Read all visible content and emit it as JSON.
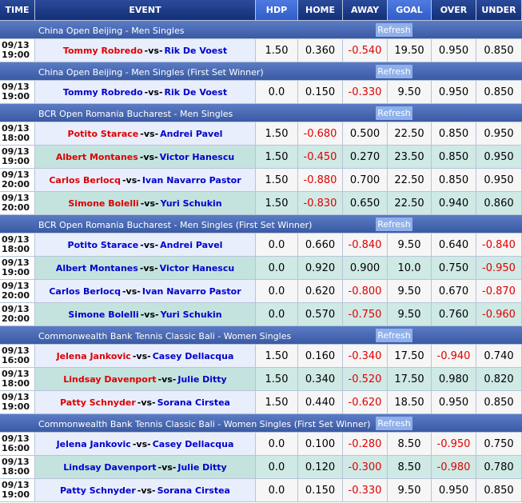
{
  "header": {
    "columns": [
      "TIME",
      "EVENT",
      "HDP",
      "HOME",
      "AWAY",
      "GOAL",
      "OVER",
      "UNDER"
    ]
  },
  "refresh": "Refresh",
  "vs": "-vs-",
  "sections": [
    {
      "title": "China Open Beijing - Men Singles",
      "matches": [
        {
          "date": "09/13",
          "time": "19:00",
          "home": "Tommy Robredo",
          "away": "Rik De Voest",
          "home_color": "#dd0000",
          "odds": [
            "1.50",
            "0.360",
            "-0.540",
            "19.50",
            "0.950",
            "0.850"
          ]
        }
      ]
    },
    {
      "title": "China Open Beijing - Men Singles (First Set Winner)",
      "matches": [
        {
          "date": "09/13",
          "time": "19:00",
          "home": "Tommy Robredo",
          "away": "Rik De Voest",
          "home_color": "#0000cc",
          "odds": [
            "0.0",
            "0.150",
            "-0.330",
            "9.50",
            "0.950",
            "0.850"
          ]
        }
      ]
    },
    {
      "title": "BCR Open Romania Bucharest - Men Singles",
      "matches": [
        {
          "date": "09/13",
          "time": "18:00",
          "home": "Potito Starace",
          "away": "Andrei Pavel",
          "home_color": "#dd0000",
          "odds": [
            "1.50",
            "-0.680",
            "0.500",
            "22.50",
            "0.850",
            "0.950"
          ]
        },
        {
          "date": "09/13",
          "time": "19:00",
          "home": "Albert Montanes",
          "away": "Victor Hanescu",
          "home_color": "#dd0000",
          "odds": [
            "1.50",
            "-0.450",
            "0.270",
            "23.50",
            "0.850",
            "0.950"
          ]
        },
        {
          "date": "09/13",
          "time": "20:00",
          "home": "Carlos Berlocq",
          "away": "Ivan Navarro Pastor",
          "home_color": "#dd0000",
          "odds": [
            "1.50",
            "-0.880",
            "0.700",
            "22.50",
            "0.850",
            "0.950"
          ]
        },
        {
          "date": "09/13",
          "time": "20:00",
          "home": "Simone Bolelli",
          "away": "Yuri Schukin",
          "home_color": "#dd0000",
          "odds": [
            "1.50",
            "-0.830",
            "0.650",
            "22.50",
            "0.940",
            "0.860"
          ]
        }
      ]
    },
    {
      "title": "BCR Open Romania Bucharest - Men Singles (First Set Winner)",
      "matches": [
        {
          "date": "09/13",
          "time": "18:00",
          "home": "Potito Starace",
          "away": "Andrei Pavel",
          "home_color": "#0000cc",
          "odds": [
            "0.0",
            "0.660",
            "-0.840",
            "9.50",
            "0.640",
            "-0.840"
          ]
        },
        {
          "date": "09/13",
          "time": "19:00",
          "home": "Albert Montanes",
          "away": "Victor Hanescu",
          "home_color": "#0000cc",
          "odds": [
            "0.0",
            "0.920",
            "0.900",
            "10.0",
            "0.750",
            "-0.950"
          ]
        },
        {
          "date": "09/13",
          "time": "20:00",
          "home": "Carlos Berlocq",
          "away": "Ivan Navarro Pastor",
          "home_color": "#0000cc",
          "odds": [
            "0.0",
            "0.620",
            "-0.800",
            "9.50",
            "0.670",
            "-0.870"
          ]
        },
        {
          "date": "09/13",
          "time": "20:00",
          "home": "Simone Bolelli",
          "away": "Yuri Schukin",
          "home_color": "#0000cc",
          "odds": [
            "0.0",
            "0.570",
            "-0.750",
            "9.50",
            "0.760",
            "-0.960"
          ]
        }
      ]
    },
    {
      "title": "Commonwealth Bank Tennis Classic Bali - Women Singles",
      "matches": [
        {
          "date": "09/13",
          "time": "16:00",
          "home": "Jelena Jankovic",
          "away": "Casey Dellacqua",
          "home_color": "#dd0000",
          "odds": [
            "1.50",
            "0.160",
            "-0.340",
            "17.50",
            "-0.940",
            "0.740"
          ]
        },
        {
          "date": "09/13",
          "time": "18:00",
          "home": "Lindsay Davenport",
          "away": "Julie Ditty",
          "home_color": "#dd0000",
          "odds": [
            "1.50",
            "0.340",
            "-0.520",
            "17.50",
            "0.980",
            "0.820"
          ]
        },
        {
          "date": "09/13",
          "time": "19:00",
          "home": "Patty Schnyder",
          "away": "Sorana Cirstea",
          "home_color": "#dd0000",
          "odds": [
            "1.50",
            "0.440",
            "-0.620",
            "18.50",
            "0.950",
            "0.850"
          ]
        }
      ]
    },
    {
      "title": "Commonwealth Bank Tennis Classic Bali - Women Singles (First Set Winner)",
      "matches": [
        {
          "date": "09/13",
          "time": "16:00",
          "home": "Jelena Jankovic",
          "away": "Casey Dellacqua",
          "home_color": "#0000cc",
          "odds": [
            "0.0",
            "0.100",
            "-0.280",
            "8.50",
            "-0.950",
            "0.750"
          ]
        },
        {
          "date": "09/13",
          "time": "18:00",
          "home": "Lindsay Davenport",
          "away": "Julie Ditty",
          "home_color": "#0000cc",
          "odds": [
            "0.0",
            "0.120",
            "-0.300",
            "8.50",
            "-0.980",
            "0.780"
          ]
        },
        {
          "date": "09/13",
          "time": "19:00",
          "home": "Patty Schnyder",
          "away": "Sorana Cirstea",
          "home_color": "#0000cc",
          "odds": [
            "0.0",
            "0.150",
            "-0.330",
            "9.50",
            "0.950",
            "0.850"
          ]
        }
      ]
    }
  ]
}
